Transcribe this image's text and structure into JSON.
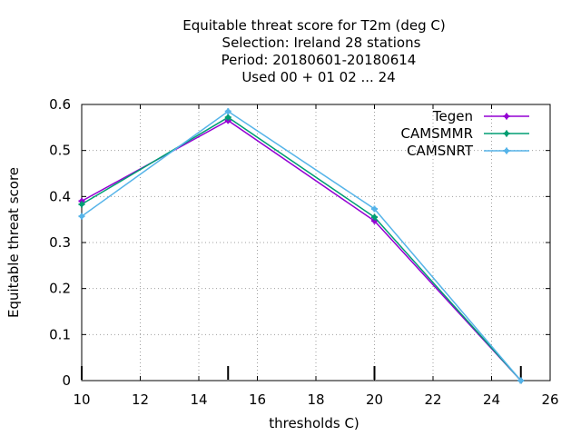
{
  "chart_data": {
    "type": "line",
    "title_lines": [
      "Equitable threat score  for T2m (deg C)",
      "Selection: Ireland     28 stations",
      "Period: 20180601-20180614",
      "Used  00 + 01 02 ... 24"
    ],
    "xlabel": "thresholds C)",
    "ylabel": "Equitable threat score",
    "xlim": [
      10,
      26
    ],
    "ylim": [
      0,
      0.6
    ],
    "xticks": [
      "10",
      "12",
      "14",
      "16",
      "18",
      "20",
      "22",
      "24",
      "26"
    ],
    "yticks": [
      "0",
      "0.1",
      "0.2",
      "0.3",
      "0.4",
      "0.5",
      "0.6"
    ],
    "grid": true,
    "legend_position": "top-right",
    "threshold_marks": [
      10,
      15,
      20,
      25
    ],
    "series": [
      {
        "name": "Tegen",
        "color": "#9400d3",
        "x": [
          10,
          15,
          20,
          25
        ],
        "y": [
          0.39,
          0.565,
          0.347,
          0.0
        ]
      },
      {
        "name": "CAMSMMR",
        "color": "#009e73",
        "x": [
          10,
          15,
          20,
          25
        ],
        "y": [
          0.383,
          0.572,
          0.355,
          0.0
        ]
      },
      {
        "name": "CAMSNRT",
        "color": "#56b4e9",
        "x": [
          10,
          15,
          20,
          25
        ],
        "y": [
          0.357,
          0.585,
          0.373,
          0.0
        ]
      }
    ]
  }
}
